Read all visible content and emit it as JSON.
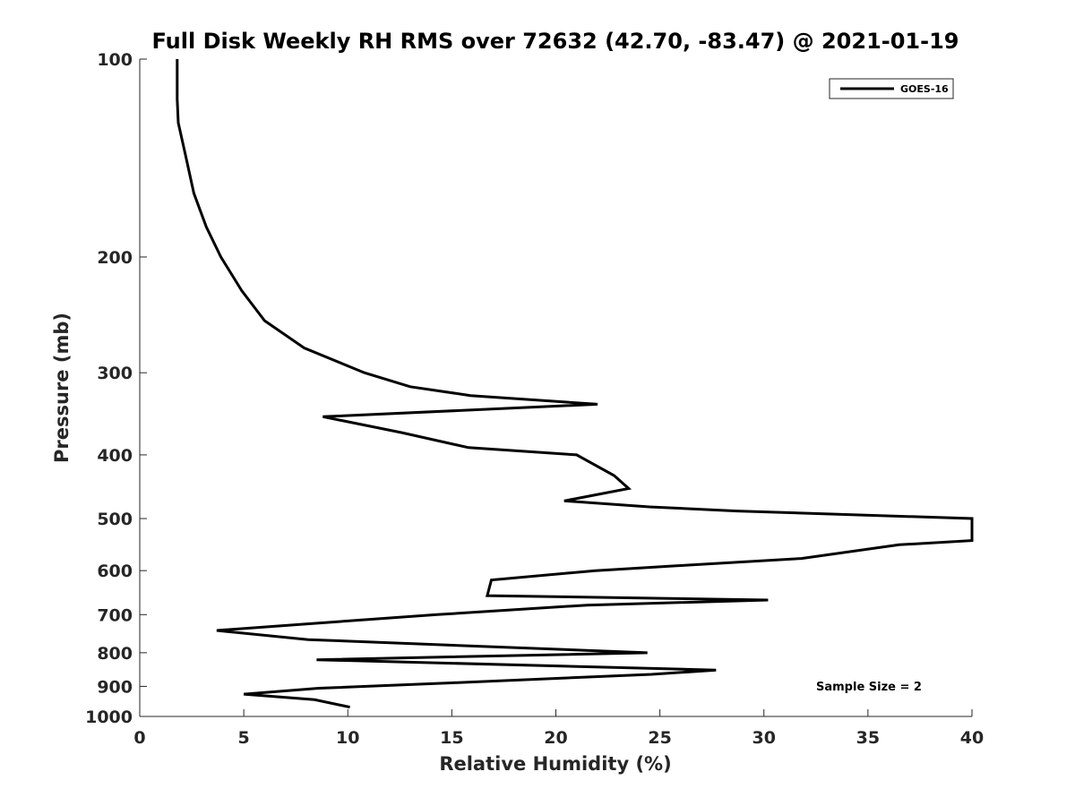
{
  "chart_data": {
    "type": "line",
    "title": "Full Disk Weekly RH RMS over 72632 (42.70, -83.47) @ 2021-01-19",
    "xlabel": "Relative Humidity (%)",
    "ylabel": "Pressure (mb)",
    "xlim": [
      0,
      40
    ],
    "ylim": [
      100,
      1000
    ],
    "yscale": "log",
    "y_reversed": true,
    "grid": false,
    "legend_position": "top-right",
    "x_ticks": [
      0,
      5,
      10,
      15,
      20,
      25,
      30,
      35,
      40
    ],
    "x_tick_labels": [
      "0",
      "5",
      "10",
      "15",
      "20",
      "25",
      "30",
      "35",
      "40"
    ],
    "y_ticks": [
      100,
      200,
      300,
      400,
      500,
      600,
      700,
      800,
      900,
      1000
    ],
    "y_tick_labels": [
      "100",
      "200",
      "300",
      "400",
      "500",
      "600",
      "700",
      "800",
      "900",
      "1000"
    ],
    "series": [
      {
        "name": "GOES-16",
        "color": "#000000",
        "x": [
          1.8,
          1.8,
          1.85,
          2.2,
          2.6,
          3.2,
          3.9,
          4.9,
          6.0,
          7.9,
          10.8,
          13.0,
          15.9,
          22.0,
          8.8,
          12.6,
          15.8,
          21.0,
          22.8,
          23.5,
          20.4,
          24.5,
          28.7,
          40.0,
          40.0,
          36.5,
          31.8,
          25.8,
          21.9,
          16.9,
          16.7,
          30.2,
          21.5,
          14.3,
          8.3,
          3.7,
          8.1,
          24.4,
          8.5,
          27.7,
          24.6,
          15.0,
          8.6,
          5.0,
          8.4,
          10.1
        ],
        "y": [
          100,
          115,
          125,
          140,
          160,
          180,
          200,
          225,
          250,
          275,
          300,
          315,
          325,
          335,
          350,
          370,
          390,
          400,
          430,
          450,
          470,
          480,
          487,
          500,
          540,
          548,
          575,
          590,
          600,
          620,
          655,
          665,
          677,
          700,
          722,
          740,
          764,
          800,
          820,
          850,
          863,
          889,
          906,
          925,
          943,
          968
        ]
      }
    ],
    "annotations": [
      "Sample Size = 2"
    ]
  }
}
